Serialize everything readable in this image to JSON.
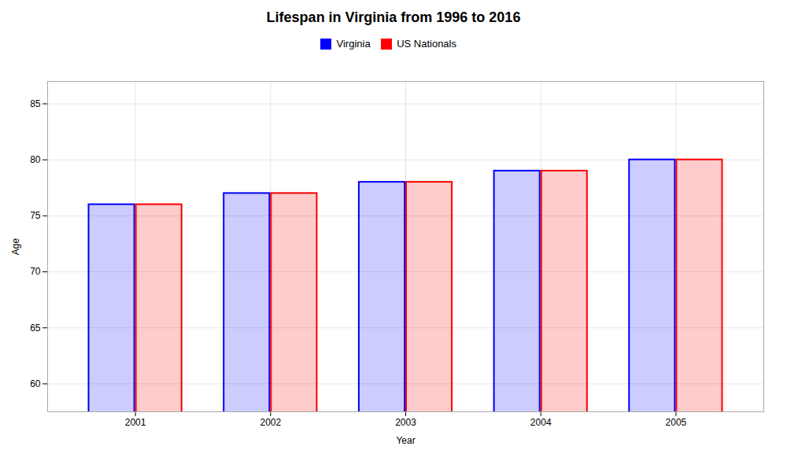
{
  "chart_data": {
    "type": "bar",
    "title": "Lifespan in Virginia from 1996 to 2016",
    "xlabel": "Year",
    "ylabel": "Age",
    "categories": [
      "2001",
      "2002",
      "2003",
      "2004",
      "2005"
    ],
    "series": [
      {
        "name": "Virginia",
        "color": "#0000ff",
        "values": [
          76.0,
          77.0,
          78.0,
          79.0,
          80.0
        ]
      },
      {
        "name": "US Nationals",
        "color": "#ff0000",
        "values": [
          76.0,
          77.0,
          78.0,
          79.0,
          80.0
        ]
      }
    ],
    "ylim": [
      57.5,
      87
    ],
    "yticks": [
      60,
      65,
      70,
      75,
      80,
      85
    ],
    "grid": true,
    "legend": "top"
  }
}
